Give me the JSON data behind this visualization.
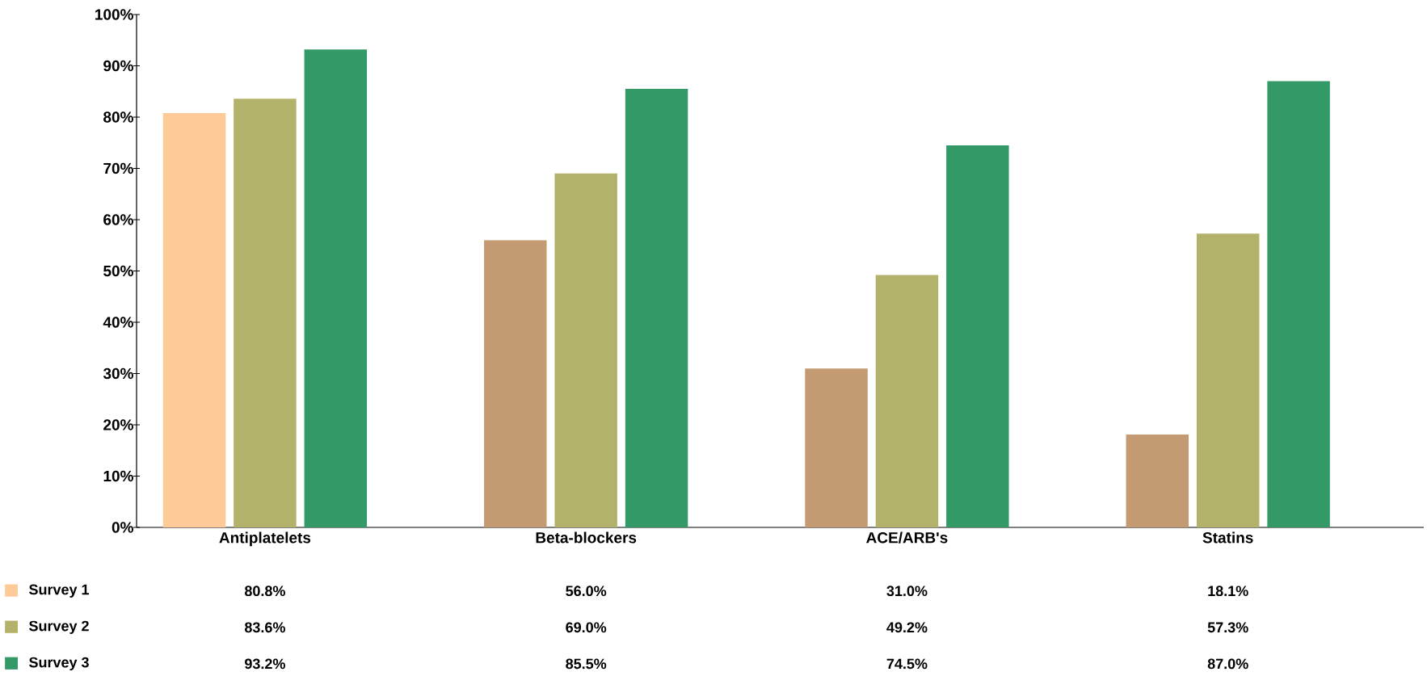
{
  "chart_data": {
    "type": "bar",
    "categories": [
      "Antiplatelets",
      "Beta-blockers",
      "ACE/ARB's",
      "Statins"
    ],
    "series": [
      {
        "name": "Survey 1",
        "color": "#fecb98",
        "colors": [
          "#fecb98",
          "#c49a73",
          "#c49a73",
          "#c49a73"
        ],
        "values": [
          80.8,
          56.0,
          31.0,
          18.1
        ],
        "value_labels": [
          "80.8%",
          "56.0%",
          "31.0%",
          "18.1%"
        ]
      },
      {
        "name": "Survey 2",
        "color": "#b2b26b",
        "values": [
          83.6,
          69.0,
          49.2,
          57.3
        ],
        "value_labels": [
          "83.6%",
          "69.0%",
          "49.2%",
          "57.3%"
        ]
      },
      {
        "name": "Survey 3",
        "color": "#339966",
        "values": [
          93.2,
          85.5,
          74.5,
          87.0
        ],
        "value_labels": [
          "93.2%",
          "85.5%",
          "74.5%",
          "87.0%"
        ]
      }
    ],
    "ylim": [
      0,
      100
    ],
    "yticks": [
      {
        "value": 0,
        "label": "0%"
      },
      {
        "value": 10,
        "label": "10%"
      },
      {
        "value": 20,
        "label": "20%"
      },
      {
        "value": 30,
        "label": "30%"
      },
      {
        "value": 40,
        "label": "40%"
      },
      {
        "value": 50,
        "label": "50%"
      },
      {
        "value": 60,
        "label": "60%"
      },
      {
        "value": 70,
        "label": "70%"
      },
      {
        "value": 80,
        "label": "80%"
      },
      {
        "value": 90,
        "label": "90%"
      },
      {
        "value": 100,
        "label": "100%"
      }
    ],
    "legend": "bottom left"
  }
}
